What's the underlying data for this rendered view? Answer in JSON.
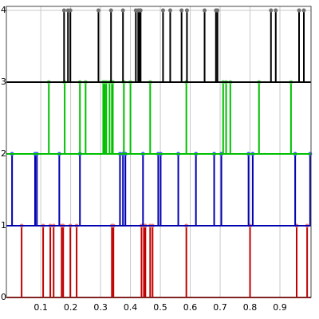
{
  "chart_data": {
    "type": "stem",
    "xlim": [
      -0.015,
      1.004
    ],
    "ylim": [
      0,
      4
    ],
    "xticks": [
      0.1,
      0.2,
      0.3,
      0.4,
      0.5,
      0.6,
      0.7,
      0.8,
      0.9
    ],
    "yticks": [
      0,
      1,
      2,
      3,
      4
    ],
    "grid": true,
    "series": [
      {
        "color": "#c00000",
        "marker_color": "#f08080",
        "bottom": 0,
        "top": 1,
        "x": [
          0.036,
          0.108,
          0.132,
          0.143,
          0.17,
          0.175,
          0.199,
          0.22,
          0.338,
          0.343,
          0.437,
          0.445,
          0.45,
          0.466,
          0.474,
          0.587,
          0.8,
          0.956,
          0.991
        ]
      },
      {
        "color": "#0000b0",
        "marker_color": "#4060ff",
        "bottom": 1,
        "top": 2,
        "x": [
          0.004,
          0.081,
          0.087,
          0.162,
          0.231,
          0.365,
          0.375,
          0.383,
          0.442,
          0.493,
          0.501,
          0.56,
          0.619,
          0.68,
          0.704,
          0.795,
          0.809,
          0.951,
          1.001
        ]
      },
      {
        "color": "#00c000",
        "marker_color": "#60e060",
        "bottom": 2,
        "top": 3,
        "x": [
          0.127,
          0.18,
          0.231,
          0.25,
          0.309,
          0.314,
          0.319,
          0.33,
          0.338,
          0.341,
          0.378,
          0.4,
          0.466,
          0.587,
          0.71,
          0.72,
          0.734,
          0.83,
          0.937
        ]
      },
      {
        "color": "#000000",
        "marker_color": "#707070",
        "bottom": 3,
        "top": 4,
        "x": [
          0.178,
          0.191,
          0.199,
          0.293,
          0.335,
          0.375,
          0.418,
          0.426,
          0.429,
          0.434,
          0.509,
          0.533,
          0.571,
          0.589,
          0.648,
          0.686,
          0.691,
          0.87,
          0.886,
          0.964,
          0.98
        ]
      }
    ]
  }
}
